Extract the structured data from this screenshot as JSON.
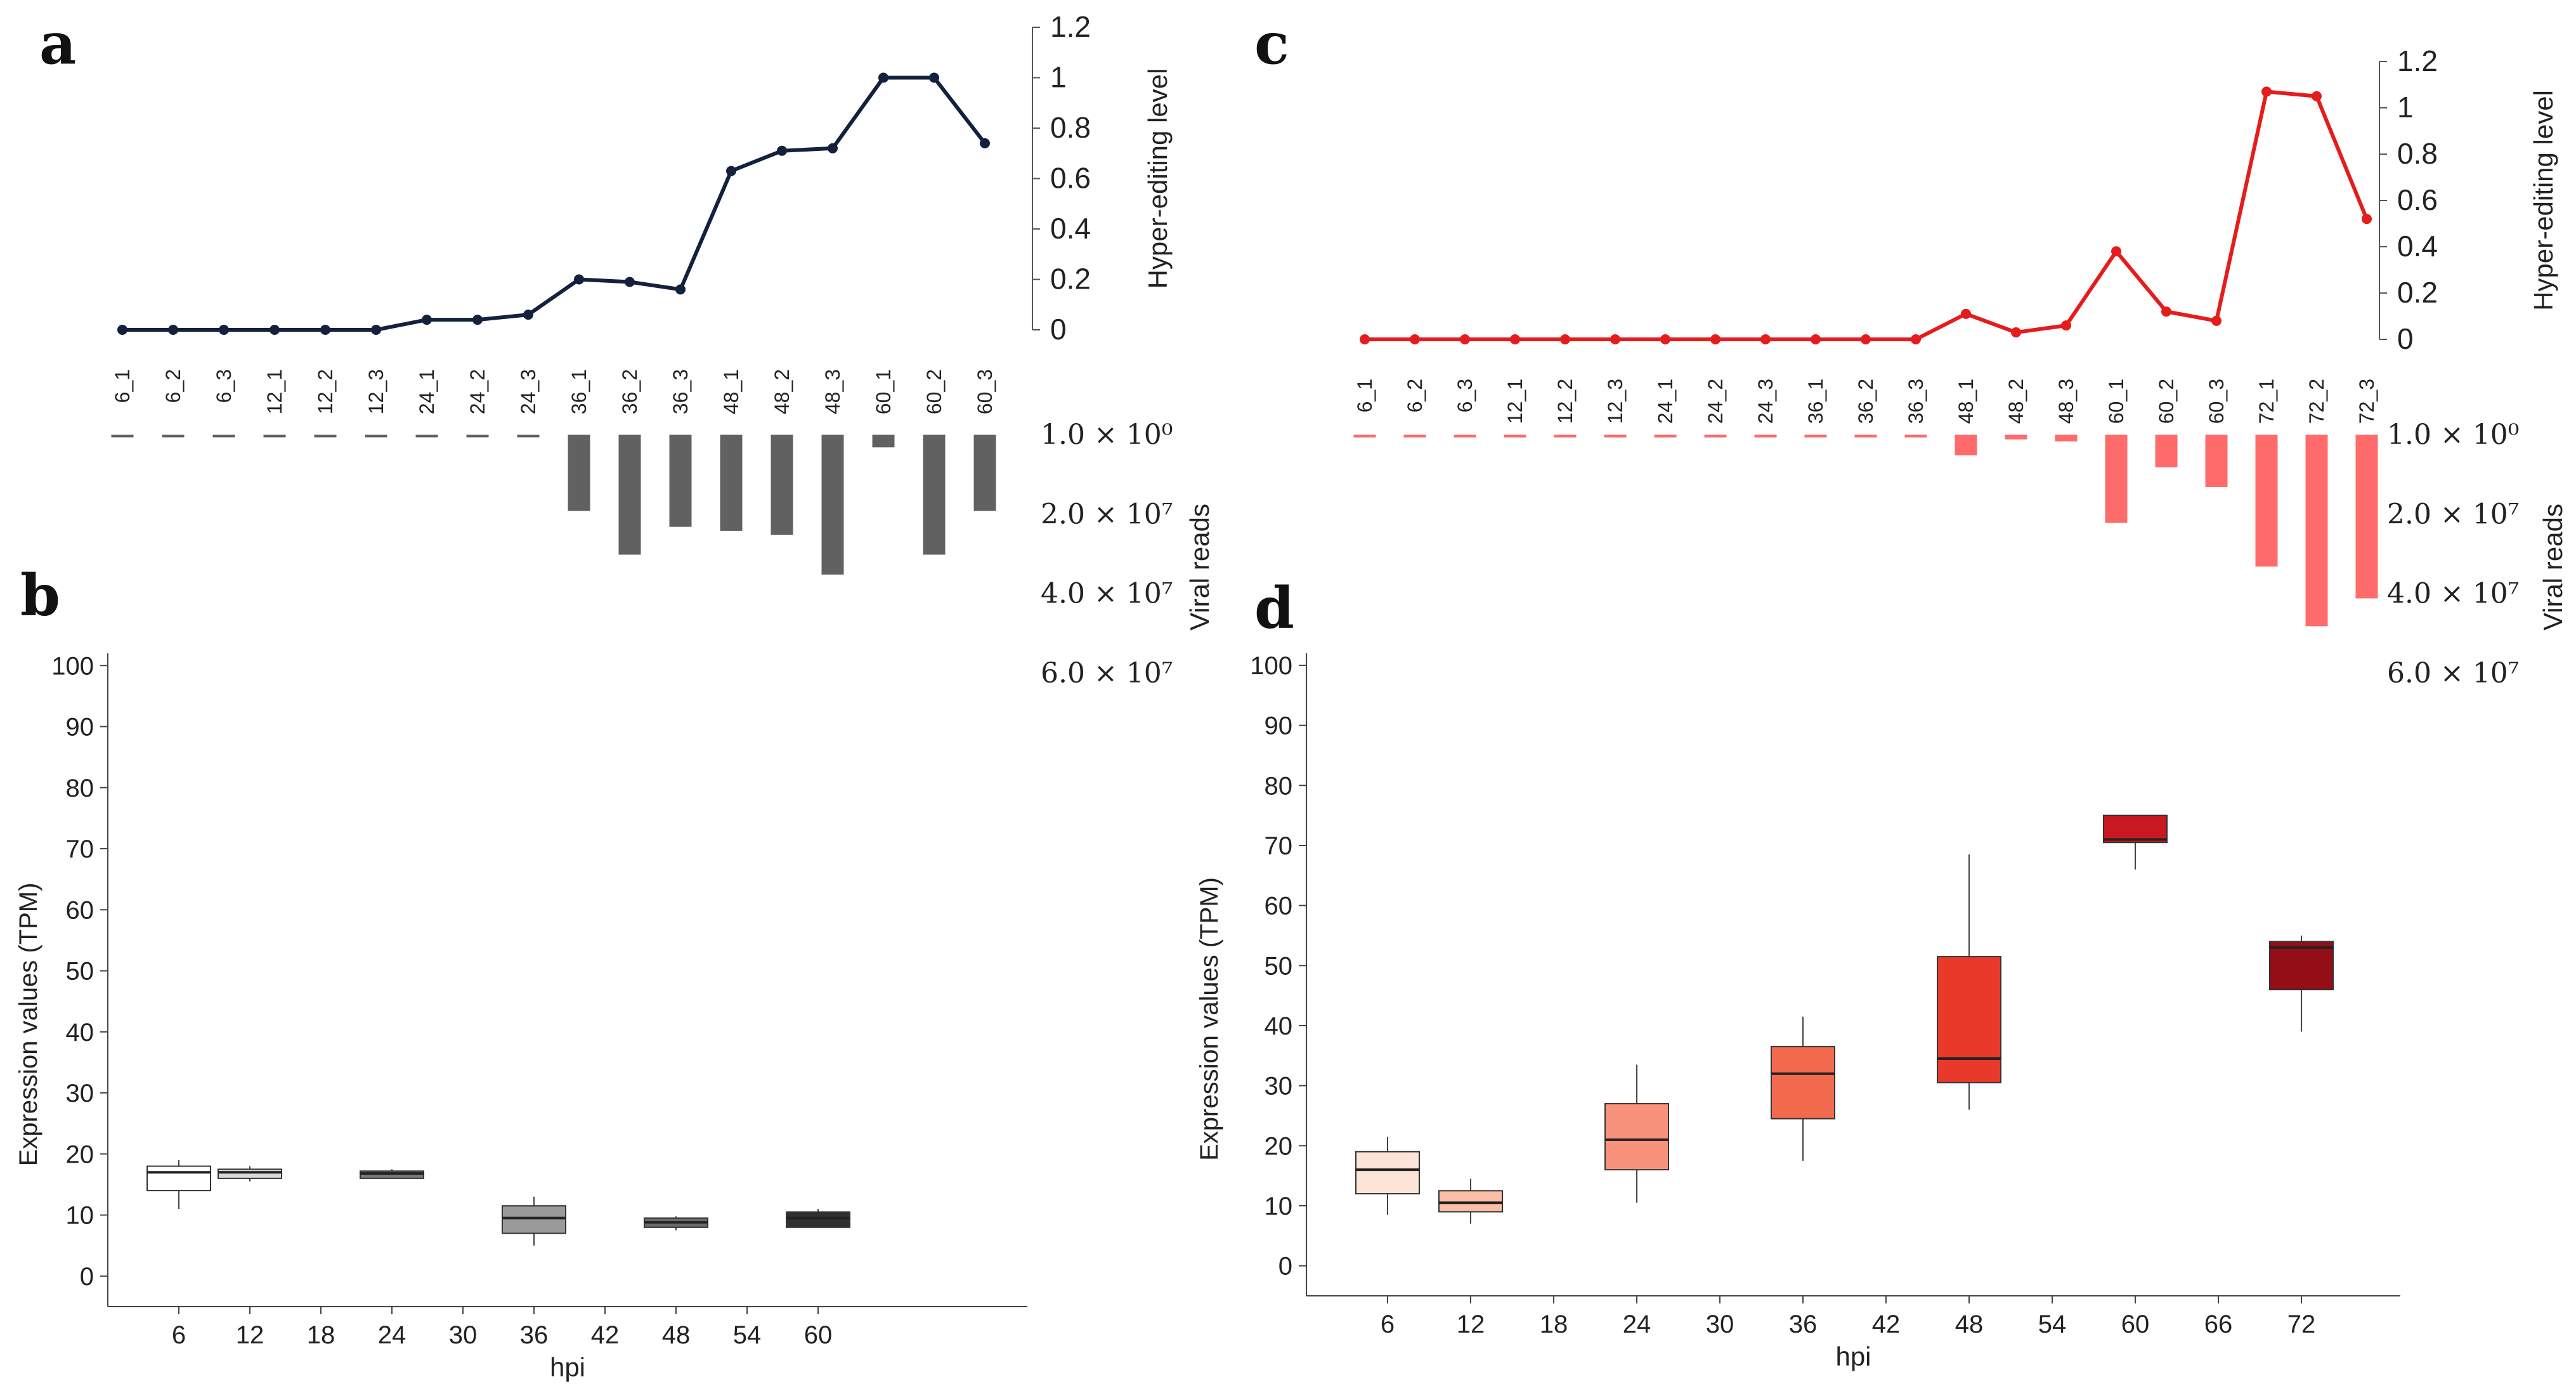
{
  "panels": {
    "a": "a",
    "b": "b",
    "c": "c",
    "d": "d"
  },
  "chart_data": [
    {
      "id": "a",
      "type": "line",
      "color": "#14213d",
      "x": [
        "6_1",
        "6_2",
        "6_3",
        "12_1",
        "12_2",
        "12_3",
        "24_1",
        "24_2",
        "24_3",
        "36_1",
        "36_2",
        "36_3",
        "48_1",
        "48_2",
        "48_3",
        "60_1",
        "60_2",
        "60_3"
      ],
      "values": [
        0,
        0,
        0,
        0,
        0,
        0,
        0.04,
        0.04,
        0.06,
        0.2,
        0.19,
        0.16,
        0.63,
        0.71,
        0.72,
        1.0,
        1.0,
        0.74
      ],
      "ylabel": "Hyper-editing level",
      "yticks": [
        "0",
        "0.2",
        "0.4",
        "0.6",
        "0.8",
        "1",
        "1.2"
      ],
      "ylim": [
        0,
        1.2
      ]
    },
    {
      "id": "a-viral",
      "type": "bar",
      "color": "#616161",
      "x": [
        "6_1",
        "6_2",
        "6_3",
        "12_1",
        "12_2",
        "12_3",
        "24_1",
        "24_2",
        "24_3",
        "36_1",
        "36_2",
        "36_3",
        "48_1",
        "48_2",
        "48_3",
        "60_1",
        "60_2",
        "60_3"
      ],
      "values": [
        0,
        0,
        0,
        0,
        0,
        0,
        0,
        200000,
        200000,
        19000000,
        30000000,
        23000000,
        24000000,
        25000000,
        35000000,
        3000000,
        30000000,
        19000000
      ],
      "ylabel": "Viral reads",
      "yticks": [
        "1.0 × 10⁰",
        "2.0 × 10⁷",
        "4.0 × 10⁷",
        "6.0 × 10⁷"
      ],
      "ylim": [
        0,
        60000000
      ]
    },
    {
      "id": "c",
      "type": "line",
      "color": "#e61c1c",
      "x": [
        "6_1",
        "6_2",
        "6_3",
        "12_1",
        "12_2",
        "12_3",
        "24_1",
        "24_2",
        "24_3",
        "36_1",
        "36_2",
        "36_3",
        "48_1",
        "48_2",
        "48_3",
        "60_1",
        "60_2",
        "60_3",
        "72_1",
        "72_2",
        "72_3"
      ],
      "values": [
        0,
        0,
        0,
        0,
        0,
        0,
        0,
        0,
        0,
        0,
        0,
        0,
        0.11,
        0.03,
        0.06,
        0.38,
        0.12,
        0.08,
        1.07,
        1.05,
        0.52
      ],
      "ylabel": "Hyper-editing level",
      "yticks": [
        "0",
        "0.2",
        "0.4",
        "0.6",
        "0.8",
        "1",
        "1.2"
      ],
      "ylim": [
        0,
        1.2
      ]
    },
    {
      "id": "c-viral",
      "type": "bar",
      "color": "#ff6b6b",
      "x": [
        "6_1",
        "6_2",
        "6_3",
        "12_1",
        "12_2",
        "12_3",
        "24_1",
        "24_2",
        "24_3",
        "36_1",
        "36_2",
        "36_3",
        "48_1",
        "48_2",
        "48_3",
        "60_1",
        "60_2",
        "60_3",
        "72_1",
        "72_2",
        "72_3"
      ],
      "values": [
        500000,
        500000,
        500000,
        500000,
        500000,
        500000,
        500000,
        500000,
        500000,
        500000,
        500000,
        500000,
        5000000,
        1000000,
        1500000,
        22000000,
        8000000,
        13000000,
        33000000,
        48000000,
        41000000
      ],
      "ylabel": "Viral reads",
      "yticks": [
        "1.0 × 10⁰",
        "2.0 × 10⁷",
        "4.0 × 10⁷",
        "6.0 × 10⁷"
      ],
      "ylim": [
        0,
        60000000
      ]
    },
    {
      "id": "b",
      "type": "box",
      "xlabel": "hpi",
      "ylabel": "Expression values (TPM)",
      "xticks": [
        "6",
        "12",
        "18",
        "24",
        "30",
        "36",
        "42",
        "48",
        "54",
        "60"
      ],
      "yticks": [
        "0",
        "10",
        "20",
        "30",
        "40",
        "50",
        "60",
        "70",
        "80",
        "90",
        "100"
      ],
      "ylim": [
        -5,
        102
      ],
      "boxes": [
        {
          "x": "6",
          "min": 11,
          "q1": 14,
          "median": 17,
          "q3": 18,
          "max": 19,
          "color": "#ffffff"
        },
        {
          "x": "12",
          "min": 15.5,
          "q1": 16,
          "median": 17,
          "q3": 17.5,
          "max": 18,
          "color": "#d9d9d9"
        },
        {
          "x": "24",
          "min": 16,
          "q1": 16,
          "median": 16.8,
          "q3": 17.2,
          "max": 17.5,
          "color": "#7a7a7a"
        },
        {
          "x": "36",
          "min": 5,
          "q1": 7,
          "median": 9.5,
          "q3": 11.5,
          "max": 13,
          "color": "#9a9a9a"
        },
        {
          "x": "48",
          "min": 7.5,
          "q1": 8,
          "median": 8.8,
          "q3": 9.5,
          "max": 9.8,
          "color": "#6b6b6b"
        },
        {
          "x": "60",
          "min": 8,
          "q1": 8,
          "median": 9.5,
          "q3": 10.5,
          "max": 11,
          "color": "#303030"
        }
      ]
    },
    {
      "id": "d",
      "type": "box",
      "xlabel": "hpi",
      "ylabel": "Expression values (TPM)",
      "xticks": [
        "6",
        "12",
        "18",
        "24",
        "30",
        "36",
        "42",
        "48",
        "54",
        "60",
        "66",
        "72"
      ],
      "yticks": [
        "0",
        "10",
        "20",
        "30",
        "40",
        "50",
        "60",
        "70",
        "80",
        "90",
        "100"
      ],
      "ylim": [
        -5,
        102
      ],
      "boxes": [
        {
          "x": "6",
          "min": 8.5,
          "q1": 12,
          "median": 16,
          "q3": 19,
          "max": 21.5,
          "color": "#fde4d8"
        },
        {
          "x": "12",
          "min": 7,
          "q1": 9,
          "median": 10.5,
          "q3": 12.5,
          "max": 14.5,
          "color": "#fbbfa6"
        },
        {
          "x": "24",
          "min": 10.5,
          "q1": 16,
          "median": 21,
          "q3": 27,
          "max": 33.5,
          "color": "#f8927a"
        },
        {
          "x": "36",
          "min": 17.5,
          "q1": 24.5,
          "median": 32,
          "q3": 36.5,
          "max": 41.5,
          "color": "#f26a4d"
        },
        {
          "x": "48",
          "min": 26,
          "q1": 30.5,
          "median": 34.5,
          "q3": 51.5,
          "max": 68.5,
          "color": "#e8392b"
        },
        {
          "x": "60",
          "min": 66,
          "q1": 70.5,
          "median": 71,
          "q3": 75,
          "max": 75,
          "color": "#c9181f"
        },
        {
          "x": "72",
          "min": 39,
          "q1": 46,
          "median": 53,
          "q3": 54,
          "max": 55,
          "color": "#930e16"
        }
      ]
    }
  ]
}
